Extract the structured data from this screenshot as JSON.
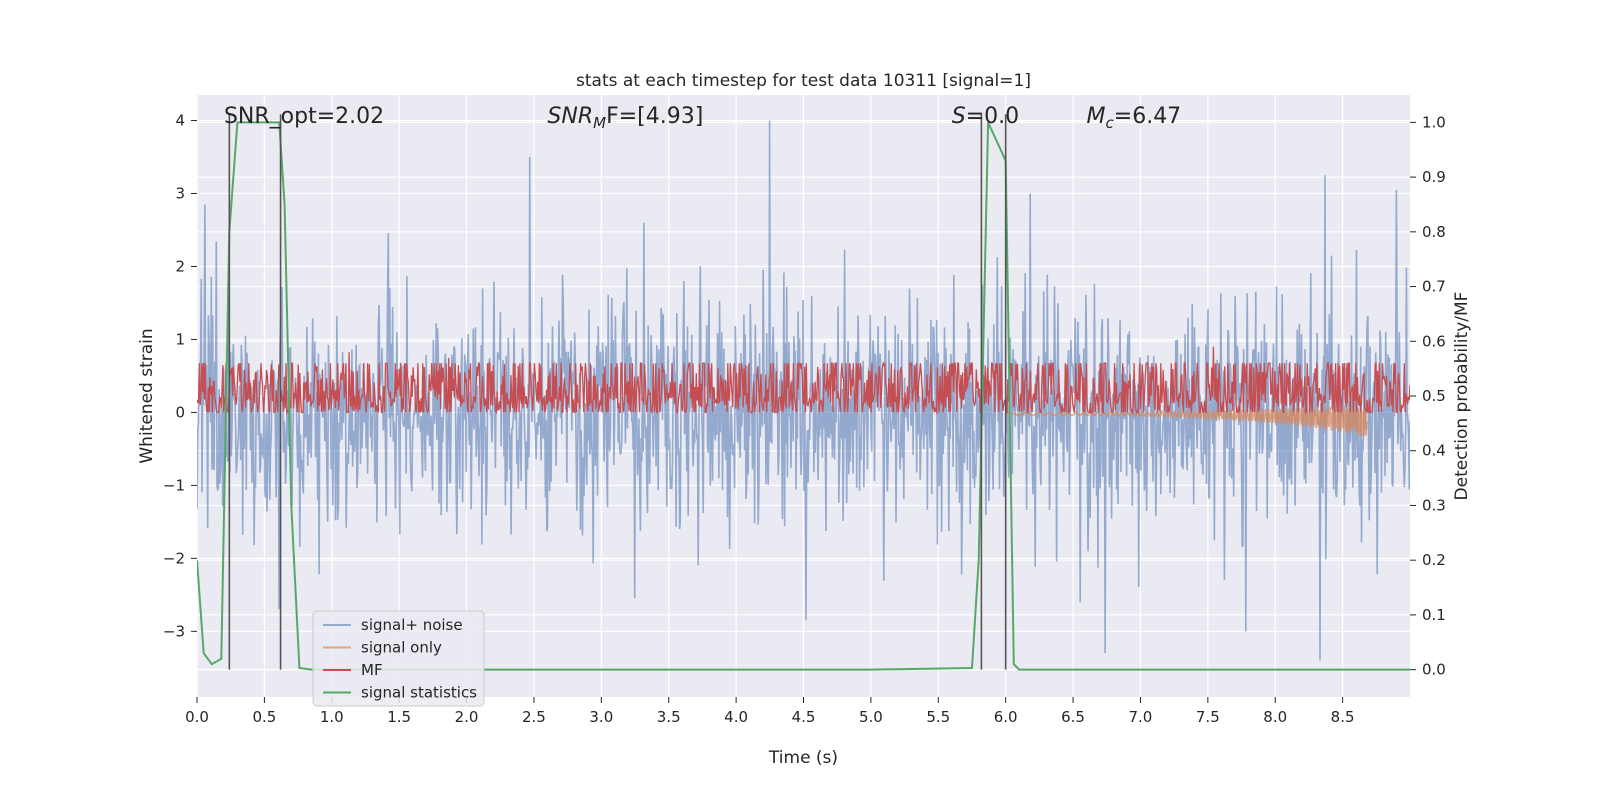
{
  "chart_data": {
    "type": "line",
    "title": "stats at each timestep for test data 10311 [signal=1]",
    "xlabel": "Time (s)",
    "ylabel": "Whitened strain",
    "ylabel_right": "Detection probability/MF",
    "xlim": [
      0.0,
      9.0
    ],
    "ylim": [
      -3.9,
      4.35
    ],
    "ylim_right": [
      -0.05,
      1.05
    ],
    "x_ticks": [
      "0.0",
      "0.5",
      "1.0",
      "1.5",
      "2.0",
      "2.5",
      "3.0",
      "3.5",
      "4.0",
      "4.5",
      "5.0",
      "5.5",
      "6.0",
      "6.5",
      "7.0",
      "7.5",
      "8.0",
      "8.5"
    ],
    "y_ticks": [
      "4",
      "3",
      "2",
      "1",
      "0",
      "−1",
      "−2",
      "−3"
    ],
    "y_tick_values": [
      4,
      3,
      2,
      1,
      0,
      -1,
      -2,
      -3
    ],
    "y_ticks_right": [
      "1.0",
      "0.9",
      "0.8",
      "0.7",
      "0.6",
      "0.5",
      "0.4",
      "0.3",
      "0.2",
      "0.1",
      "0.0"
    ],
    "y_tick_values_right": [
      1.0,
      0.9,
      0.8,
      0.7,
      0.6,
      0.5,
      0.4,
      0.3,
      0.2,
      0.1,
      0.0
    ],
    "grid": true,
    "legend_position": "lower-left",
    "background": "#eaeaf2",
    "annotations": [
      {
        "id": "snr_opt",
        "x": 0.2,
        "text": "SNR_opt=2.02"
      },
      {
        "id": "snr_mf",
        "x": 2.6,
        "text_prefix": "SNR",
        "text_sub": "M",
        "text_suffix": "F=[4.93]"
      },
      {
        "id": "s",
        "x": 5.6,
        "text_prefix": "S",
        "text_suffix": "=0.0"
      },
      {
        "id": "mc",
        "x": 6.6,
        "text_prefix": "M",
        "text_sub": "c",
        "text_suffix": "=6.47"
      }
    ],
    "vlines": [
      0.24,
      0.62,
      5.82,
      6.0
    ],
    "series": [
      {
        "name": "signal+ noise",
        "color": "#4c72b0",
        "axis": "left",
        "kind": "noise",
        "x_range": [
          0.0,
          9.0
        ],
        "std": 0.78,
        "peaks": [
          [
            0.06,
            2.85
          ],
          [
            2.47,
            3.5
          ],
          [
            4.25,
            4.0
          ],
          [
            6.18,
            3.0
          ],
          [
            8.37,
            3.25
          ],
          [
            8.9,
            3.05
          ]
        ],
        "troughs": [
          [
            0.61,
            -2.7
          ],
          [
            6.74,
            -3.3
          ],
          [
            7.78,
            -3.0
          ],
          [
            8.33,
            -3.4
          ],
          [
            4.52,
            -2.85
          ]
        ]
      },
      {
        "name": "signal only",
        "color": "#dd8452",
        "axis": "left",
        "kind": "chirp",
        "x_range": [
          6.0,
          8.68
        ],
        "start_amp": 0.02,
        "end_amp": 0.22
      },
      {
        "name": "MF",
        "color": "#c44e52",
        "axis": "right",
        "kind": "mf",
        "x_range": [
          0.0,
          9.0
        ],
        "baseline": 0.5,
        "spread": 0.06,
        "peaks": [
          [
            1.13,
            0.58
          ],
          [
            1.87,
            0.57
          ],
          [
            7.54,
            0.59
          ]
        ]
      },
      {
        "name": "signal statistics",
        "color": "#55a868",
        "axis": "right",
        "kind": "line",
        "x": [
          0.0,
          0.05,
          0.11,
          0.18,
          0.24,
          0.3,
          0.4,
          0.5,
          0.61,
          0.65,
          0.7,
          0.76,
          0.85,
          1.0,
          2.0,
          3.0,
          4.0,
          5.0,
          5.75,
          5.8,
          5.87,
          6.0,
          6.06,
          6.1,
          7.0,
          8.0,
          9.0
        ],
        "y": [
          0.2,
          0.03,
          0.01,
          0.02,
          0.8,
          1.0,
          1.0,
          1.0,
          1.0,
          0.85,
          0.3,
          0.003,
          0.0,
          0.0,
          0.0,
          0.0,
          0.0,
          0.0,
          0.003,
          0.2,
          1.0,
          0.93,
          0.01,
          0.0,
          0.0,
          0.0,
          0.0
        ]
      }
    ]
  }
}
